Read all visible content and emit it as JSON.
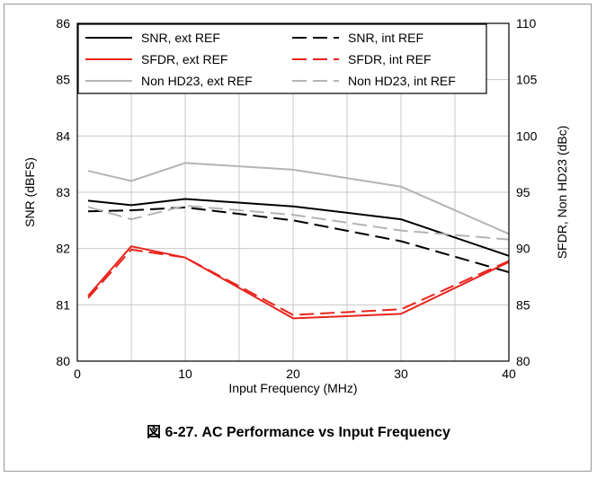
{
  "caption": "図 6-27. AC Performance vs Input Frequency",
  "chart_data": {
    "type": "line",
    "xlabel": "Input Frequency (MHz)",
    "ylabel": "SNR (dBFS)",
    "y2label": "SFDR, Non HD23 (dBc)",
    "xlim": [
      0,
      40
    ],
    "ylim": [
      80,
      86
    ],
    "y2lim": [
      80,
      110
    ],
    "xticks": [
      0,
      10,
      20,
      30,
      40
    ],
    "yticks": [
      80,
      81,
      82,
      83,
      84,
      85,
      86
    ],
    "y2ticks": [
      80,
      85,
      90,
      95,
      100,
      105,
      110
    ],
    "grid": true,
    "legend_position": "top",
    "series": [
      {
        "name": "SNR, ext REF",
        "axis": "left",
        "color": "#000000",
        "dash": "solid",
        "x": [
          1,
          5,
          10,
          20,
          30,
          40
        ],
        "y": [
          82.85,
          82.77,
          82.88,
          82.75,
          82.52,
          81.87
        ]
      },
      {
        "name": "SNR, int REF",
        "axis": "left",
        "color": "#000000",
        "dash": "dashed",
        "x": [
          1,
          5,
          10,
          20,
          30,
          40
        ],
        "y": [
          82.66,
          82.68,
          82.73,
          82.5,
          82.13,
          81.58
        ]
      },
      {
        "name": "SFDR, ext REF",
        "axis": "right",
        "color": "#e8241c",
        "dash": "solid",
        "x": [
          1,
          5,
          10,
          20,
          30,
          40
        ],
        "y": [
          85.8,
          90.2,
          89.2,
          83.8,
          84.2,
          88.8
        ]
      },
      {
        "name": "SFDR, int REF",
        "axis": "right",
        "color": "#e8241c",
        "dash": "dashed",
        "x": [
          1,
          5,
          10,
          20,
          30,
          40
        ],
        "y": [
          85.6,
          89.9,
          89.2,
          84.1,
          84.6,
          88.9
        ]
      },
      {
        "name": "Non HD23, ext REF",
        "axis": "right",
        "color": "#b4b4b4",
        "dash": "solid",
        "x": [
          1,
          5,
          10,
          20,
          30,
          40
        ],
        "y": [
          96.9,
          96.0,
          97.6,
          97.0,
          95.5,
          91.3
        ]
      },
      {
        "name": "Non HD23, int REF",
        "axis": "right",
        "color": "#b4b4b4",
        "dash": "dashed",
        "x": [
          1,
          5,
          10,
          20,
          30,
          40
        ],
        "y": [
          93.7,
          92.6,
          93.8,
          93.0,
          91.6,
          90.8
        ]
      }
    ]
  }
}
